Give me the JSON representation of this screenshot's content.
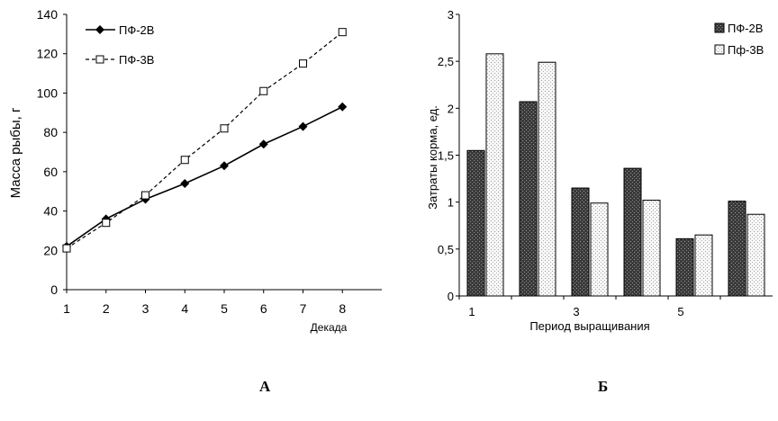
{
  "chart_data": [
    {
      "type": "line",
      "panel_label": "А",
      "xlabel": "Декада",
      "ylabel": "Масса рыбы, г",
      "x": [
        1,
        2,
        3,
        4,
        5,
        6,
        7,
        8
      ],
      "xlim": [
        1,
        9
      ],
      "x_ticks": [
        "1",
        "2",
        "3",
        "4",
        "5",
        "6",
        "7",
        "8"
      ],
      "ylim": [
        0,
        140
      ],
      "y_ticks": [
        "0",
        "20",
        "40",
        "60",
        "80",
        "100",
        "120",
        "140"
      ],
      "grid": false,
      "legend": "top-left",
      "series": [
        {
          "name": "ПФ-2В",
          "marker": "diamond",
          "line": "solid",
          "color": "#000000",
          "values": [
            22,
            36,
            46,
            54,
            63,
            74,
            83,
            93
          ]
        },
        {
          "name": "ПФ-3В",
          "marker": "open-square",
          "line": "dashed",
          "color": "#000000",
          "values": [
            21,
            34,
            48,
            66,
            82,
            101,
            115,
            131
          ]
        }
      ]
    },
    {
      "type": "bar",
      "panel_label": "Б",
      "xlabel": "Период выращивания",
      "ylabel": "Затраты корма, ед.",
      "categories": [
        "1",
        "",
        "3",
        "",
        "5",
        ""
      ],
      "ylim": [
        0,
        3
      ],
      "y_ticks": [
        "0",
        "0,5",
        "1",
        "1,5",
        "2",
        "2,5",
        "3"
      ],
      "grid": false,
      "legend": "top-right",
      "series": [
        {
          "name": "ПФ-2В",
          "fill": "dark-stipple",
          "color": "#333333",
          "values": [
            1.55,
            2.07,
            1.15,
            1.36,
            0.61,
            1.01
          ]
        },
        {
          "name": "Пф-3В",
          "fill": "light-stipple",
          "color": "#f4f4f4",
          "values": [
            2.58,
            2.49,
            0.99,
            1.02,
            0.65,
            0.87
          ]
        }
      ]
    }
  ]
}
